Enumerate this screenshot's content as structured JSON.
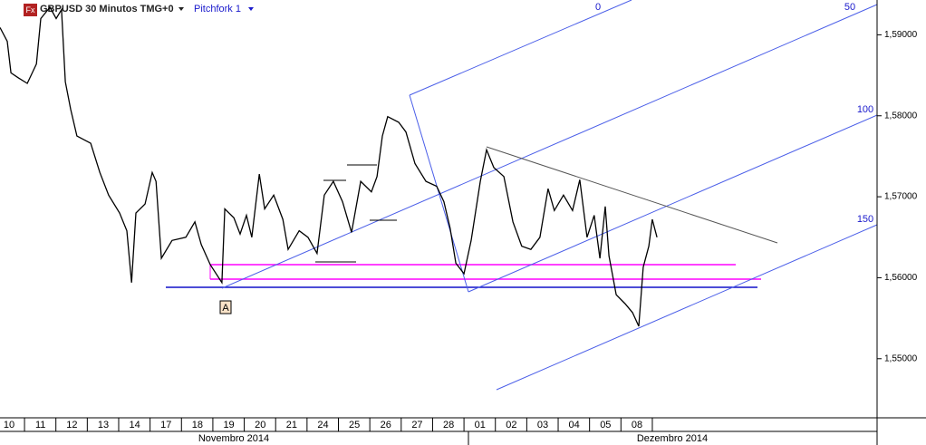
{
  "chart_data": {
    "type": "line",
    "icon": "Fx",
    "title": "GBPUSD 30 Minutos TMG+0",
    "indicator": "Pitchfork 1",
    "color": "#000000",
    "x": [
      -0.29,
      -0.06,
      0.06,
      0.29,
      0.58,
      0.87,
      1.01,
      1.3,
      1.5,
      1.67,
      1.79,
      1.96,
      2.16,
      2.6,
      2.89,
      3.17,
      3.52,
      3.75,
      3.9,
      4.04,
      4.33,
      4.56,
      4.68,
      4.85,
      5.19,
      5.63,
      5.92,
      6.12,
      6.41,
      6.78,
      6.87,
      7.16,
      7.36,
      7.56,
      7.73,
      7.97,
      8.14,
      8.43,
      8.72,
      8.89,
      9.24,
      9.52,
      9.81,
      10.04,
      10.33,
      10.62,
      10.91,
      11.2,
      11.54,
      11.72,
      11.89,
      12.06,
      12.41,
      12.64,
      12.93,
      13.28,
      13.62,
      13.85,
      14.05,
      14.23,
      14.49,
      14.72,
      15.01,
      15.21,
      15.44,
      15.76,
      16.05,
      16.33,
      16.62,
      16.91,
      17.17,
      17.37,
      17.66,
      17.95,
      18.18,
      18.41,
      18.64,
      18.82,
      18.99,
      19.11,
      19.34,
      19.62,
      19.86,
      20.06,
      20.2,
      20.38,
      20.49,
      20.64
    ],
    "values": [
      1.5909,
      1.5892,
      1.5853,
      1.5847,
      1.584,
      1.5864,
      1.592,
      1.5934,
      1.592,
      1.5931,
      1.5842,
      1.5808,
      1.5775,
      1.5766,
      1.573,
      1.5702,
      1.568,
      1.5658,
      1.5594,
      1.568,
      1.5691,
      1.573,
      1.5719,
      1.5624,
      1.5646,
      1.565,
      1.5669,
      1.5641,
      1.5616,
      1.5594,
      1.5685,
      1.5674,
      1.5654,
      1.5677,
      1.565,
      1.5728,
      1.5685,
      1.5702,
      1.5672,
      1.5635,
      1.5658,
      1.565,
      1.563,
      1.5702,
      1.5719,
      1.5694,
      1.5656,
      1.5719,
      1.5706,
      1.5725,
      1.5775,
      1.5799,
      1.5792,
      1.578,
      1.5741,
      1.5719,
      1.5713,
      1.5694,
      1.5661,
      1.5618,
      1.5605,
      1.5646,
      1.5719,
      1.5758,
      1.5736,
      1.5725,
      1.5669,
      1.5639,
      1.5635,
      1.565,
      1.571,
      1.5683,
      1.5702,
      1.5683,
      1.5721,
      1.565,
      1.5677,
      1.5624,
      1.5688,
      1.5627,
      1.5579,
      1.5568,
      1.5557,
      1.554,
      1.5613,
      1.5639,
      1.5672,
      1.565
    ],
    "xlim": [
      -0.29,
      27.65
    ],
    "xticks": [
      {
        "value": 0,
        "label": "10"
      },
      {
        "value": 1,
        "label": "11"
      },
      {
        "value": 2,
        "label": "12"
      },
      {
        "value": 3,
        "label": "13"
      },
      {
        "value": 4,
        "label": "14"
      },
      {
        "value": 5,
        "label": "17"
      },
      {
        "value": 6,
        "label": "18"
      },
      {
        "value": 7,
        "label": "19"
      },
      {
        "value": 8,
        "label": "20"
      },
      {
        "value": 9,
        "label": "21"
      },
      {
        "value": 10,
        "label": "24"
      },
      {
        "value": 11,
        "label": "25"
      },
      {
        "value": 12,
        "label": "26"
      },
      {
        "value": 13,
        "label": "27"
      },
      {
        "value": 14,
        "label": "28"
      },
      {
        "value": 15,
        "label": "01"
      },
      {
        "value": 16,
        "label": "02"
      },
      {
        "value": 17,
        "label": "03"
      },
      {
        "value": 18,
        "label": "04"
      },
      {
        "value": 19,
        "label": "05"
      },
      {
        "value": 20,
        "label": "08"
      }
    ],
    "ylim": [
      1.5427,
      1.5943
    ],
    "yticks": [
      {
        "value": 1.55,
        "label": "1,55000"
      },
      {
        "value": 1.56,
        "label": "1,56000"
      },
      {
        "value": 1.57,
        "label": "1,57000"
      },
      {
        "value": 1.58,
        "label": "1,58000"
      },
      {
        "value": 1.59,
        "label": "1,59000"
      }
    ],
    "pitchfork_levels": [
      "0",
      "50",
      "100",
      "150"
    ],
    "marker": "A",
    "periods": [
      "Novembro 2014",
      "Dezembro 2014"
    ]
  }
}
